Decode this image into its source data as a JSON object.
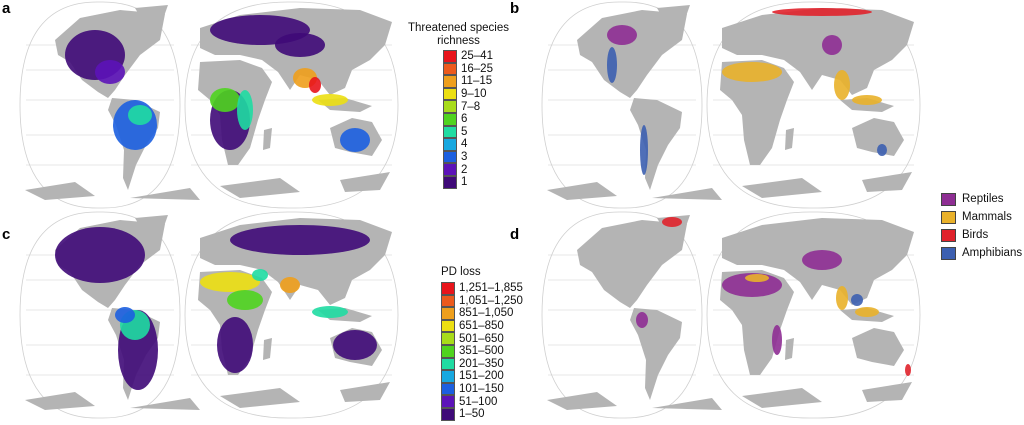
{
  "panels": {
    "a": {
      "label": "a"
    },
    "b": {
      "label": "b"
    },
    "c": {
      "label": "c"
    },
    "d": {
      "label": "d"
    }
  },
  "legend_a": {
    "title_line1": "Threatened species",
    "title_line2": "richness",
    "items": [
      {
        "label": "25–41",
        "color": "#e8141b"
      },
      {
        "label": "16–25",
        "color": "#ec5a1c"
      },
      {
        "label": "11–15",
        "color": "#ee9f1c"
      },
      {
        "label": "9–10",
        "color": "#ecdf12"
      },
      {
        "label": "7–8",
        "color": "#a8dc1a"
      },
      {
        "label": "6",
        "color": "#4fd41f"
      },
      {
        "label": "5",
        "color": "#1fdca2"
      },
      {
        "label": "4",
        "color": "#17a8e0"
      },
      {
        "label": "3",
        "color": "#1c5fe0"
      },
      {
        "label": "2",
        "color": "#5c13b8"
      },
      {
        "label": "1",
        "color": "#3f0a78"
      }
    ]
  },
  "legend_c": {
    "title": "PD loss",
    "items": [
      {
        "label": "1,251–1,855",
        "color": "#e8141b"
      },
      {
        "label": "1,051–1,250",
        "color": "#ec5a1c"
      },
      {
        "label": "851–1,050",
        "color": "#ee9f1c"
      },
      {
        "label": "651–850",
        "color": "#ecdf12"
      },
      {
        "label": "501–650",
        "color": "#a8dc1a"
      },
      {
        "label": "351–500",
        "color": "#4fd41f"
      },
      {
        "label": "201–350",
        "color": "#1fdca2"
      },
      {
        "label": "151–200",
        "color": "#17a8e0"
      },
      {
        "label": "101–150",
        "color": "#1c5fe0"
      },
      {
        "label": "51–100",
        "color": "#5c13b8"
      },
      {
        "label": "1–50",
        "color": "#3f0a78"
      }
    ]
  },
  "legend_classes": {
    "items": [
      {
        "label": "Reptiles",
        "color": "#8e2e93"
      },
      {
        "label": "Mammals",
        "color": "#e9b12a"
      },
      {
        "label": "Birds",
        "color": "#e0222b"
      },
      {
        "label": "Amphibians",
        "color": "#3c5fb0"
      }
    ]
  },
  "colors": {
    "land": "#b4b4b4",
    "graticule": "#cfcfcf"
  }
}
